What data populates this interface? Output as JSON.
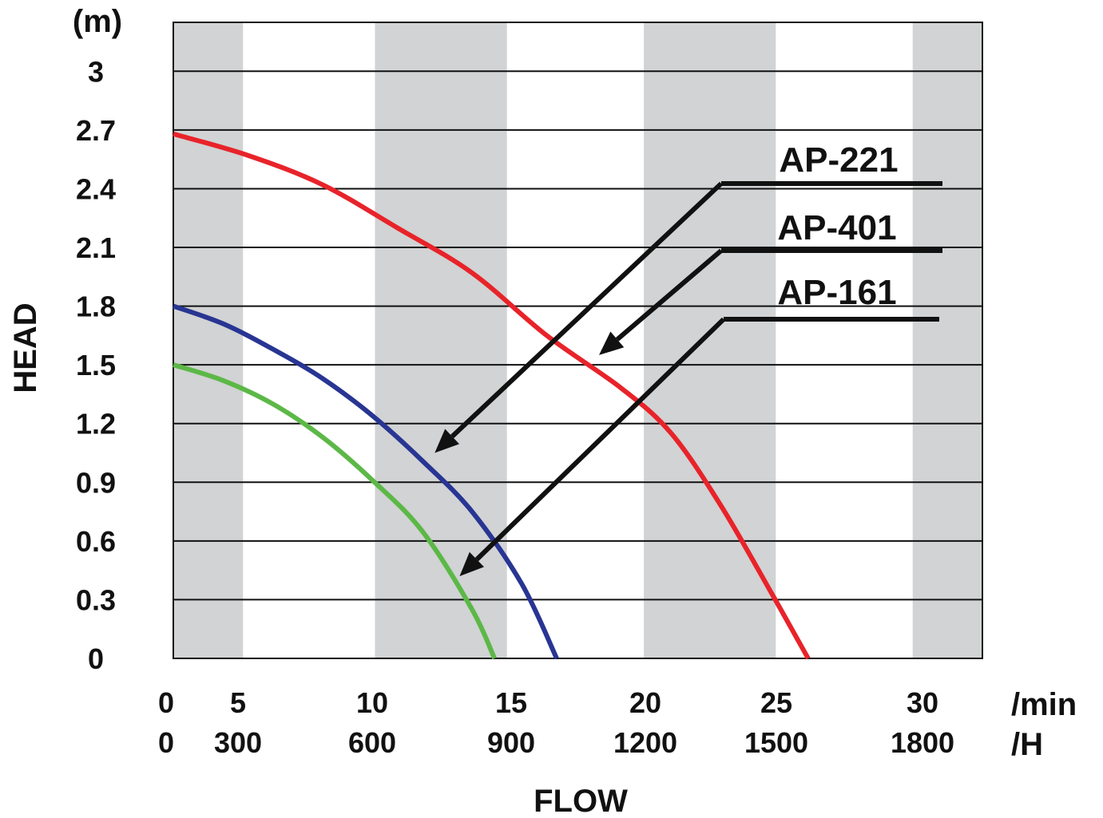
{
  "chart_data": {
    "type": "line",
    "title": "",
    "xlabel": "FLOW",
    "ylabel": "HEAD",
    "y_unit": "(m)",
    "x_unit_primary": "/min",
    "x_unit_secondary": "/H",
    "xlim": [
      0,
      32.5
    ],
    "ylim": [
      0,
      3.25
    ],
    "x_ticks": [
      0,
      5,
      10,
      15,
      20,
      25,
      30
    ],
    "x_tick_labels": [
      "0",
      "5",
      "10",
      "15",
      "20",
      "25",
      "30"
    ],
    "x_tick_labels_secondary": [
      "0",
      "300",
      "600",
      "900",
      "1200",
      "1500",
      "1800"
    ],
    "y_ticks": [
      0,
      0.3,
      0.6,
      0.9,
      1.2,
      1.5,
      1.8,
      2.1,
      2.4,
      2.7,
      3
    ],
    "y_tick_labels": [
      "0",
      "0.3",
      "0.6",
      "0.9",
      "1.2",
      "1.5",
      "1.8",
      "2.1",
      "2.4",
      "2.7",
      "3"
    ],
    "grid": "horizontal",
    "shaded_bands": [
      [
        0,
        2.8
      ],
      [
        8.1,
        13.4
      ],
      [
        18.9,
        24.2
      ],
      [
        29.7,
        32.5
      ]
    ],
    "series": [
      {
        "name": "AP-221",
        "color": "#e8232a",
        "x": [
          0,
          3,
          6,
          9,
          12,
          15,
          18,
          20,
          22,
          24,
          25.5
        ],
        "y": [
          2.68,
          2.57,
          2.42,
          2.2,
          1.97,
          1.65,
          1.38,
          1.15,
          0.78,
          0.34,
          0
        ]
      },
      {
        "name": "AP-401",
        "color": "#283593",
        "x": [
          0,
          2,
          4,
          6,
          8,
          10,
          12,
          14,
          15.4
        ],
        "y": [
          1.8,
          1.71,
          1.58,
          1.43,
          1.24,
          1.01,
          0.75,
          0.38,
          0
        ]
      },
      {
        "name": "AP-161",
        "color": "#5cb847",
        "x": [
          0,
          2,
          4,
          6,
          8,
          10,
          12,
          12.9
        ],
        "y": [
          1.5,
          1.42,
          1.3,
          1.13,
          0.91,
          0.65,
          0.25,
          0
        ]
      }
    ],
    "annotations": [
      {
        "text": "AP-221",
        "arrow_to": [
          10.5,
          1.05
        ]
      },
      {
        "text": "AP-401",
        "arrow_to": [
          17.1,
          1.55
        ]
      },
      {
        "text": "AP-161",
        "arrow_to": [
          11.5,
          0.42
        ]
      }
    ]
  }
}
